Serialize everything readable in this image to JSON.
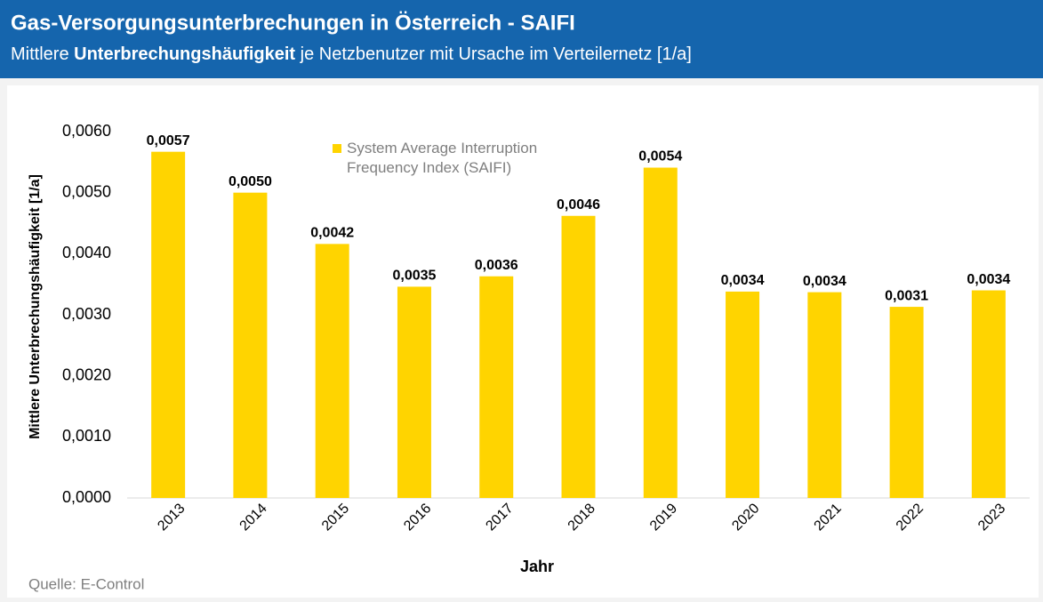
{
  "chart_data": {
    "type": "bar",
    "title": "Gas-Versorgungsunterbrechungen in Österreich  - SAIFI",
    "subtitle": [
      "Mittlere",
      "Unterbrechungshäufigkeit",
      "je Netzbenutzer mit Ursache im Verteilernetz  [1/a]"
    ],
    "x_label": "Jahr",
    "y_label": "Mittlere Unterbrechungshäufigkeit [1/a]",
    "source": "Quelle: E-Control",
    "categories": [
      "2013",
      "2014",
      "2015",
      "2016",
      "2017",
      "2018",
      "2019",
      "2020",
      "2021",
      "2022",
      "2023"
    ],
    "series": [
      {
        "name": "System Average Interruption Frequency Index (SAIFI)",
        "color": "#ffd400",
        "values": [
          0.00567,
          0.005,
          0.00416,
          0.00346,
          0.00363,
          0.00462,
          0.00541,
          0.00338,
          0.00337,
          0.00313,
          0.0034
        ],
        "value_labels": [
          "0,0057",
          "0,0050",
          "0,0042",
          "0,0035",
          "0,0036",
          "0,0046",
          "0,0054",
          "0,0034",
          "0,0034",
          "0,0031",
          "0,0034"
        ]
      }
    ],
    "ylim": [
      0,
      0.006
    ],
    "yticks": [
      {
        "value": 0,
        "label": "0,0000"
      },
      {
        "value": 0.001,
        "label": "0,0010"
      },
      {
        "value": 0.002,
        "label": "0,0020"
      },
      {
        "value": 0.003,
        "label": "0,0030"
      },
      {
        "value": 0.004,
        "label": "0,0040"
      },
      {
        "value": 0.005,
        "label": "0,0050"
      },
      {
        "value": 0.006,
        "label": "0,0060"
      }
    ],
    "grid": false,
    "legend": "top"
  }
}
